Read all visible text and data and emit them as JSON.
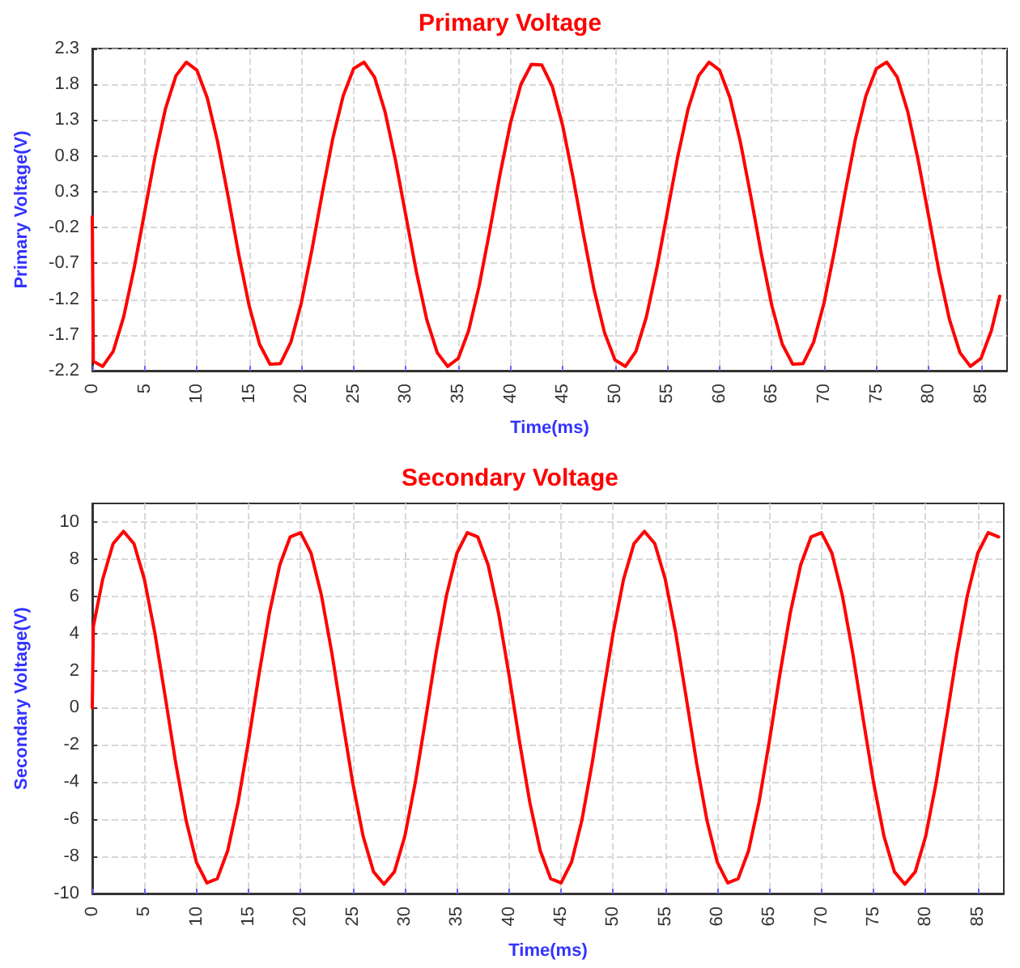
{
  "chart_data": [
    {
      "type": "line",
      "title": "Primary Voltage",
      "xlabel": "Time(ms)",
      "ylabel": "Primary Voltage(V)",
      "x": [
        0,
        0.1,
        1,
        2,
        3,
        4,
        5,
        6,
        7,
        8,
        9,
        10,
        11,
        12,
        13,
        14,
        15,
        16,
        17,
        18,
        19,
        20,
        21,
        22,
        23,
        24,
        25,
        26,
        27,
        28,
        29,
        30,
        31,
        32,
        33,
        34,
        35,
        36,
        37,
        38,
        39,
        40,
        41,
        42,
        43,
        44,
        45,
        46,
        47,
        48,
        49,
        50,
        51,
        52,
        53,
        54,
        55,
        56,
        57,
        58,
        59,
        60,
        61,
        62,
        63,
        64,
        65,
        66,
        67,
        68,
        69,
        70,
        71,
        72,
        73,
        74,
        75,
        76,
        77,
        78,
        79,
        80,
        81,
        82,
        83,
        84,
        85,
        86,
        86.8
      ],
      "series": [
        {
          "color": "#ff0000",
          "values": [
            -0.05,
            -2.07,
            -2.14,
            -1.93,
            -1.45,
            -0.77,
            0.01,
            0.79,
            1.46,
            1.92,
            2.11,
            2.0,
            1.61,
            0.99,
            0.23,
            -0.57,
            -1.29,
            -1.83,
            -2.11,
            -2.1,
            -1.8,
            -1.25,
            -0.52,
            0.28,
            1.04,
            1.64,
            2.02,
            2.11,
            1.9,
            1.42,
            0.74,
            -0.04,
            -0.82,
            -1.49,
            -1.95,
            -2.14,
            -2.03,
            -1.64,
            -1.02,
            -0.26,
            0.54,
            1.26,
            1.8,
            2.08,
            2.07,
            1.77,
            1.22,
            0.49,
            -0.31,
            -1.07,
            -1.67,
            -2.05,
            -2.14,
            -1.93,
            -1.45,
            -0.77,
            0.01,
            0.79,
            1.46,
            1.92,
            2.11,
            2.0,
            1.61,
            0.99,
            0.23,
            -0.57,
            -1.29,
            -1.83,
            -2.11,
            -2.1,
            -1.8,
            -1.25,
            -0.52,
            0.28,
            1.04,
            1.64,
            2.02,
            2.11,
            1.9,
            1.42,
            0.74,
            -0.04,
            -0.82,
            -1.49,
            -1.95,
            -2.14,
            -2.03,
            -1.64,
            -1.16
          ]
        }
      ],
      "xlim": [
        0,
        87.5
      ],
      "xticks": [
        0,
        5,
        10,
        15,
        20,
        25,
        30,
        35,
        40,
        45,
        50,
        55,
        60,
        65,
        70,
        75,
        80,
        85
      ],
      "ylim": [
        -2.2,
        2.3
      ],
      "yticks": [
        -2.2,
        -1.7,
        -1.2,
        -0.7,
        -0.2,
        0.3,
        0.8,
        1.3,
        1.8,
        2.3
      ],
      "grid": true,
      "marker": "none",
      "line_style": "solid"
    },
    {
      "type": "line",
      "title": "Secondary Voltage",
      "xlabel": "Time(ms)",
      "ylabel": "Secondary Voltage(V)",
      "x": [
        0,
        0.1,
        1,
        2,
        3,
        4,
        5,
        6,
        7,
        8,
        9,
        10,
        11,
        12,
        13,
        14,
        15,
        16,
        17,
        18,
        19,
        20,
        21,
        22,
        23,
        24,
        25,
        26,
        27,
        28,
        29,
        30,
        31,
        32,
        33,
        34,
        35,
        36,
        37,
        38,
        39,
        40,
        41,
        42,
        43,
        44,
        45,
        46,
        47,
        48,
        49,
        50,
        51,
        52,
        53,
        54,
        55,
        56,
        57,
        58,
        59,
        60,
        61,
        62,
        63,
        64,
        65,
        66,
        67,
        68,
        69,
        70,
        71,
        72,
        73,
        74,
        75,
        76,
        77,
        78,
        79,
        80,
        81,
        82,
        83,
        84,
        85,
        86,
        87
      ],
      "series": [
        {
          "color": "#ff0000",
          "values": [
            0,
            4.37,
            6.92,
            8.83,
            9.5,
            8.83,
            6.92,
            4.04,
            0.6,
            -2.94,
            -6.05,
            -8.32,
            -9.43,
            -9.2,
            -7.69,
            -5.09,
            -1.78,
            1.78,
            5.09,
            7.69,
            9.2,
            9.43,
            8.32,
            6.05,
            2.94,
            -0.6,
            -4.04,
            -6.92,
            -8.83,
            -9.5,
            -8.83,
            -6.92,
            -4.04,
            -0.6,
            2.94,
            6.05,
            8.32,
            9.43,
            9.2,
            7.69,
            5.09,
            1.78,
            -1.78,
            -5.09,
            -7.69,
            -9.2,
            -9.43,
            -8.32,
            -6.05,
            -2.94,
            0.6,
            4.04,
            6.92,
            8.83,
            9.5,
            8.83,
            6.92,
            4.04,
            0.6,
            -2.94,
            -6.05,
            -8.32,
            -9.43,
            -9.2,
            -7.69,
            -5.09,
            -1.78,
            1.78,
            5.09,
            7.69,
            9.2,
            9.43,
            8.32,
            6.05,
            2.94,
            -0.6,
            -4.04,
            -6.92,
            -8.83,
            -9.5,
            -8.83,
            -6.92,
            -4.04,
            -0.6,
            2.94,
            6.05,
            8.32,
            9.43,
            9.2
          ]
        }
      ],
      "xlim": [
        0,
        87.5
      ],
      "xticks": [
        0,
        5,
        10,
        15,
        20,
        25,
        30,
        35,
        40,
        45,
        50,
        55,
        60,
        65,
        70,
        75,
        80,
        85
      ],
      "ylim": [
        -10,
        11
      ],
      "yticks": [
        -10,
        -8,
        -6,
        -4,
        -2,
        0,
        2,
        4,
        6,
        8,
        10
      ],
      "grid": true,
      "marker": "none",
      "line_style": "solid"
    }
  ]
}
